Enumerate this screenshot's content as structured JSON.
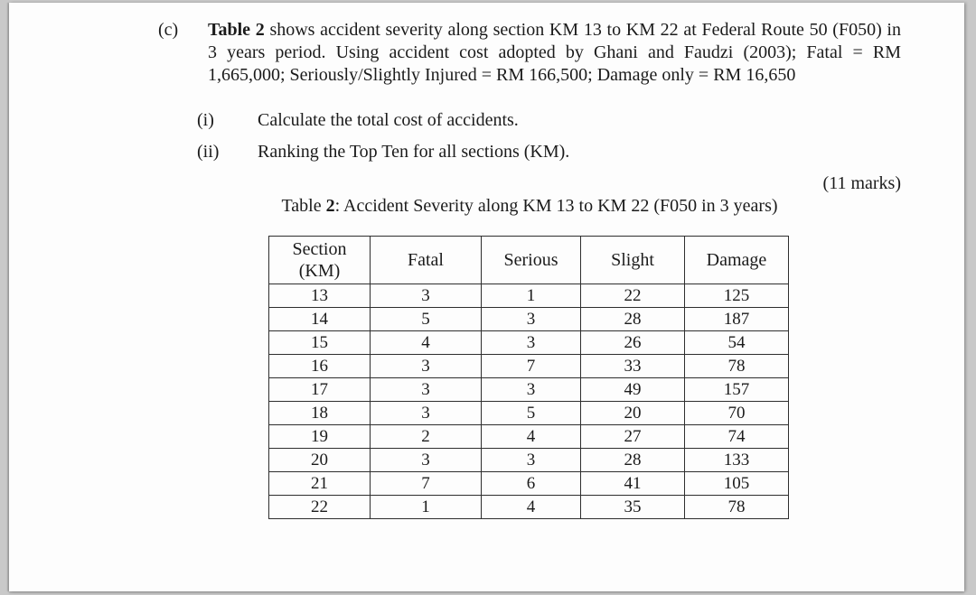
{
  "page": {
    "question": {
      "part_label": "(c)",
      "intro_bold": "Table 2",
      "intro_rest": " shows accident severity along section KM 13 to KM 22 at Federal Route 50 (F050) in 3 years period. Using accident cost adopted by Ghani and Faudzi (2003); Fatal = RM 1,665,000; Seriously/Slightly Injured = RM 166,500; Damage only = RM 16,650",
      "subitems": [
        {
          "label": "(i)",
          "text": "Calculate the total cost of accidents."
        },
        {
          "label": "(ii)",
          "text": "Ranking the Top Ten for all sections (KM)."
        }
      ],
      "marks": "(11 marks)"
    },
    "table": {
      "caption_prefix": "Table ",
      "caption_bold": "2",
      "caption_rest": ": Accident Severity along KM 13 to KM 22 (F050 in 3 years)",
      "headers": [
        "Section (KM)",
        "Fatal",
        "Serious",
        "Slight",
        "Damage"
      ],
      "rows": [
        [
          "13",
          "3",
          "1",
          "22",
          "125"
        ],
        [
          "14",
          "5",
          "3",
          "28",
          "187"
        ],
        [
          "15",
          "4",
          "3",
          "26",
          "54"
        ],
        [
          "16",
          "3",
          "7",
          "33",
          "78"
        ],
        [
          "17",
          "3",
          "3",
          "49",
          "157"
        ],
        [
          "18",
          "3",
          "5",
          "20",
          "70"
        ],
        [
          "19",
          "2",
          "4",
          "27",
          "74"
        ],
        [
          "20",
          "3",
          "3",
          "28",
          "133"
        ],
        [
          "21",
          "7",
          "6",
          "41",
          "105"
        ],
        [
          "22",
          "1",
          "4",
          "35",
          "78"
        ]
      ]
    }
  }
}
